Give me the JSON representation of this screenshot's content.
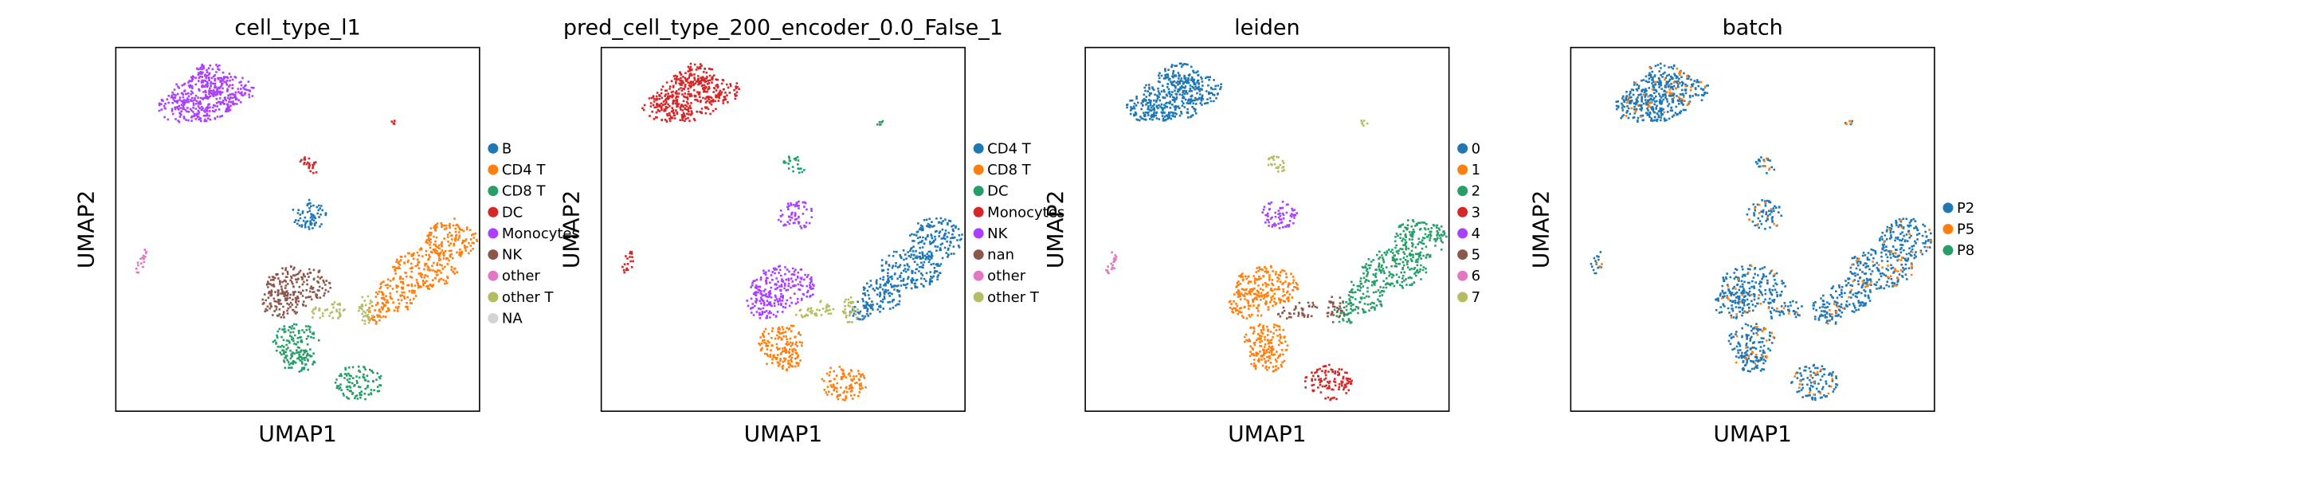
{
  "colors": {
    "blue": "#1f77b4",
    "orange": "#ff7f0e",
    "green": "#279e68",
    "red": "#d62728",
    "purple": "#aa40fc",
    "brown": "#8c564b",
    "pink": "#e377c2",
    "olive": "#b5bd61",
    "lightgray": "#d3d3d3"
  },
  "chart_data": [
    {
      "type": "scatter",
      "title": "cell_type_l1",
      "xlabel": "UMAP1",
      "ylabel": "UMAP2",
      "grid": false,
      "legend_placement": "right",
      "legend": [
        {
          "label": "B",
          "color": "#1f77b4"
        },
        {
          "label": "CD4 T",
          "color": "#ff7f0e"
        },
        {
          "label": "CD8 T",
          "color": "#279e68"
        },
        {
          "label": "DC",
          "color": "#d62728"
        },
        {
          "label": "Monocytes",
          "color": "#aa40fc"
        },
        {
          "label": "NK",
          "color": "#8c564b"
        },
        {
          "label": "other",
          "color": "#e377c2"
        },
        {
          "label": "other T",
          "color": "#b5bd61"
        },
        {
          "label": "NA",
          "color": "#d3d3d3"
        }
      ],
      "clusters": {
        "mono": "#aa40fc",
        "tiny": "#d62728",
        "dc": "#d62728",
        "b": "#1f77b4",
        "bigright": "#ff7f0e",
        "left": "#8c564b",
        "bridge": "#b5bd61",
        "lowmid": "#279e68",
        "bottom": "#279e68",
        "pink": "#e377c2"
      }
    },
    {
      "type": "scatter",
      "title": "pred_cell_type_200_encoder_0.0_False_1",
      "xlabel": "UMAP1",
      "ylabel": "UMAP2",
      "grid": false,
      "legend_placement": "right",
      "legend": [
        {
          "label": "CD4 T",
          "color": "#1f77b4"
        },
        {
          "label": "CD8 T",
          "color": "#ff7f0e"
        },
        {
          "label": "DC",
          "color": "#279e68"
        },
        {
          "label": "Monocytes",
          "color": "#d62728"
        },
        {
          "label": "NK",
          "color": "#aa40fc"
        },
        {
          "label": "nan",
          "color": "#8c564b"
        },
        {
          "label": "other",
          "color": "#e377c2"
        },
        {
          "label": "other T",
          "color": "#b5bd61"
        }
      ],
      "clusters": {
        "mono": "#d62728",
        "tiny": "#279e68",
        "dc": "#279e68",
        "b": "#aa40fc",
        "bigright": "#1f77b4",
        "left": "#aa40fc",
        "bridge": "#b5bd61",
        "lowmid": "#ff7f0e",
        "bottom": "#ff7f0e",
        "pink": "#d62728"
      }
    },
    {
      "type": "scatter",
      "title": "leiden",
      "xlabel": "UMAP1",
      "ylabel": "UMAP2",
      "grid": false,
      "legend_placement": "right",
      "legend": [
        {
          "label": "0",
          "color": "#1f77b4"
        },
        {
          "label": "1",
          "color": "#ff7f0e"
        },
        {
          "label": "2",
          "color": "#279e68"
        },
        {
          "label": "3",
          "color": "#d62728"
        },
        {
          "label": "4",
          "color": "#aa40fc"
        },
        {
          "label": "5",
          "color": "#8c564b"
        },
        {
          "label": "6",
          "color": "#e377c2"
        },
        {
          "label": "7",
          "color": "#b5bd61"
        }
      ],
      "clusters": {
        "mono": "#1f77b4",
        "tiny": "#b5bd61",
        "dc": "#b5bd61",
        "b": "#aa40fc",
        "bigright": "#279e68",
        "left": "#ff7f0e",
        "bridge": "#8c564b",
        "lowmid": "#ff7f0e",
        "bottom": "#d62728",
        "pink": "#e377c2"
      }
    },
    {
      "type": "scatter",
      "title": "batch",
      "xlabel": "UMAP1",
      "ylabel": "UMAP2",
      "grid": false,
      "legend_placement": "right",
      "legend": [
        {
          "label": "P2",
          "color": "#1f77b4"
        },
        {
          "label": "P5",
          "color": "#ff7f0e"
        },
        {
          "label": "P8",
          "color": "#279e68"
        }
      ],
      "clusters": {
        "mono": "#1f77b4",
        "tiny": "#1f77b4",
        "dc": "#1f77b4",
        "b": "#1f77b4",
        "bigright": "#1f77b4",
        "left": "#1f77b4",
        "bridge": "#1f77b4",
        "lowmid": "#1f77b4",
        "bottom": "#1f77b4",
        "pink": "#1f77b4"
      },
      "speckle_color": "#ff7f0e"
    }
  ]
}
